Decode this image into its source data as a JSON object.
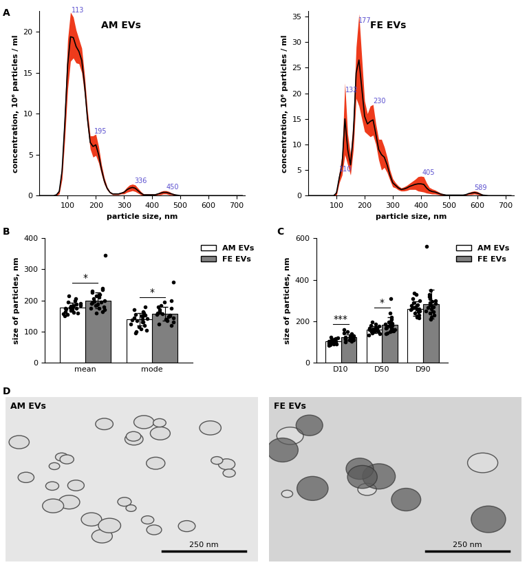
{
  "chart_data": [
    {
      "type": "line",
      "title": "AM EVs",
      "x_label": "particle size, nm",
      "y_label": "concentration, 10⁶ particles / ml",
      "x": [
        0,
        10,
        20,
        30,
        40,
        50,
        60,
        70,
        80,
        90,
        100,
        110,
        120,
        130,
        140,
        150,
        160,
        170,
        180,
        190,
        200,
        210,
        220,
        230,
        240,
        250,
        260,
        270,
        280,
        290,
        300,
        310,
        320,
        330,
        340,
        350,
        360,
        370,
        380,
        390,
        400,
        410,
        420,
        430,
        440,
        450,
        460,
        470,
        480,
        490,
        500,
        510,
        520,
        530,
        540,
        550,
        560,
        570,
        580,
        590,
        600,
        610,
        620,
        630,
        640,
        650,
        660,
        670,
        680,
        690,
        700,
        710,
        720
      ],
      "values": [
        0,
        0,
        0,
        0,
        0,
        0,
        0.1,
        0.5,
        3,
        9,
        16,
        19.4,
        19.3,
        18.2,
        17.6,
        16.5,
        13.5,
        9.5,
        6.5,
        6.0,
        6.2,
        5.0,
        3.2,
        1.8,
        0.9,
        0.4,
        0.2,
        0.2,
        0.2,
        0.3,
        0.4,
        0.7,
        0.9,
        1.0,
        0.9,
        0.6,
        0.3,
        0.1,
        0.1,
        0.1,
        0.1,
        0.1,
        0.2,
        0.3,
        0.4,
        0.4,
        0.3,
        0.2,
        0.1,
        0.05,
        0,
        0,
        0,
        0,
        0,
        0,
        0,
        0,
        0,
        0,
        0,
        0,
        0,
        0,
        0,
        0,
        0,
        0,
        0,
        0,
        0,
        0,
        0
      ],
      "error": [
        0,
        0,
        0,
        0,
        0,
        0,
        0.1,
        0.3,
        1,
        2,
        3,
        3,
        2.5,
        2,
        1.5,
        1.5,
        1.2,
        1,
        0.8,
        1.3,
        1.3,
        1,
        0.6,
        0.4,
        0.2,
        0.1,
        0.1,
        0.1,
        0.1,
        0.1,
        0.2,
        0.3,
        0.4,
        0.4,
        0.4,
        0.3,
        0.2,
        0.1,
        0.1,
        0.1,
        0.1,
        0.1,
        0.1,
        0.2,
        0.2,
        0.2,
        0.2,
        0.1,
        0.1,
        0,
        0,
        0,
        0,
        0,
        0,
        0,
        0,
        0,
        0,
        0,
        0,
        0,
        0,
        0,
        0,
        0,
        0,
        0,
        0,
        0,
        0,
        0,
        0
      ],
      "color": "#000000",
      "error_color": "#ee3b1c",
      "peaks": [
        113,
        195,
        336,
        450
      ],
      "peak_color": "#5a4fcf",
      "xlim": [
        0,
        730
      ],
      "xticks": [
        100,
        200,
        300,
        400,
        500,
        600,
        700
      ],
      "ylim": [
        0,
        22.5
      ],
      "yticks": [
        0,
        5,
        10,
        15,
        20
      ]
    },
    {
      "type": "line",
      "title": "FE EVs",
      "x_label": "particle size, nm",
      "y_label": "concentration, 10⁶ particles / ml",
      "x": [
        0,
        10,
        20,
        30,
        40,
        50,
        60,
        70,
        80,
        90,
        100,
        110,
        120,
        130,
        140,
        150,
        160,
        170,
        180,
        190,
        200,
        210,
        220,
        230,
        240,
        250,
        260,
        270,
        280,
        290,
        300,
        310,
        320,
        330,
        340,
        350,
        360,
        370,
        380,
        390,
        400,
        410,
        420,
        430,
        440,
        450,
        460,
        470,
        480,
        490,
        500,
        510,
        520,
        530,
        540,
        550,
        560,
        570,
        580,
        590,
        600,
        610,
        620,
        630,
        640,
        650,
        660,
        670,
        680,
        690,
        700,
        710,
        720
      ],
      "values": [
        0,
        0,
        0,
        0,
        0,
        0,
        0,
        0,
        0,
        0,
        0.5,
        3.5,
        6,
        15,
        9,
        6,
        12,
        24,
        26.5,
        21,
        15.5,
        14,
        14.5,
        14.8,
        12,
        9,
        8,
        7.5,
        6,
        4,
        2.5,
        2,
        1.5,
        1.2,
        1.3,
        1.5,
        1.8,
        2,
        2.2,
        2.3,
        2.3,
        2.2,
        1.5,
        1,
        0.8,
        0.7,
        0.5,
        0.3,
        0.2,
        0.1,
        0.1,
        0.1,
        0.1,
        0.1,
        0.1,
        0.1,
        0.2,
        0.4,
        0.5,
        0.6,
        0.5,
        0.3,
        0.1,
        0.05,
        0,
        0,
        0,
        0,
        0,
        0,
        0,
        0,
        0
      ],
      "error": [
        0,
        0,
        0,
        0,
        0,
        0,
        0,
        0,
        0,
        0,
        0.5,
        1,
        2,
        7,
        3,
        2,
        3,
        5,
        9,
        6,
        3,
        2,
        3,
        3,
        2,
        2,
        3,
        2,
        1.5,
        1,
        0.8,
        0.5,
        0.4,
        0.3,
        0.4,
        0.5,
        0.6,
        0.8,
        1,
        1.4,
        1.5,
        1.5,
        1,
        0.6,
        0.5,
        0.4,
        0.3,
        0.2,
        0.1,
        0.1,
        0.1,
        0.1,
        0.1,
        0.1,
        0.1,
        0.1,
        0.1,
        0.2,
        0.3,
        0.3,
        0.3,
        0.2,
        0.1,
        0,
        0,
        0,
        0,
        0,
        0,
        0,
        0,
        0,
        0
      ],
      "color": "#000000",
      "error_color": "#ee3b1c",
      "peaks": [
        110,
        132,
        177,
        230,
        405,
        589
      ],
      "peak_color": "#5a4fcf",
      "xlim": [
        0,
        730
      ],
      "xticks": [
        100,
        200,
        300,
        400,
        500,
        600,
        700
      ],
      "ylim": [
        0,
        36
      ],
      "yticks": [
        0,
        5,
        10,
        15,
        20,
        25,
        30,
        35
      ]
    },
    {
      "type": "bar",
      "y_label": "size of particles, nm",
      "categories": [
        "mean",
        "mode"
      ],
      "legend": "upper right",
      "series": [
        {
          "name": "AM EVs",
          "color": "#ffffff",
          "values": [
            178,
            140
          ],
          "errors": [
            15,
            20
          ],
          "points": [
            [
              150,
              155,
              160,
              162,
              165,
              168,
              170,
              172,
              175,
              176,
              178,
              180,
              182,
              185,
              188,
              190,
              195,
              200,
              205,
              215,
              158,
              183
            ],
            [
              95,
              100,
              105,
              110,
              115,
              120,
              125,
              130,
              135,
              138,
              140,
              142,
              145,
              150,
              155,
              160,
              165,
              170,
              180,
              130,
              148,
              152
            ]
          ]
        },
        {
          "name": "FE EVs",
          "color": "#808080",
          "values": [
            200,
            157
          ],
          "errors": [
            25,
            22
          ],
          "points": [
            [
              160,
              165,
              170,
              175,
              180,
              185,
              188,
              190,
              195,
              198,
              200,
              205,
              210,
              215,
              220,
              225,
              230,
              235,
              240,
              175,
              345,
              192
            ],
            [
              120,
              125,
              130,
              135,
              140,
              145,
              150,
              152,
              155,
              158,
              160,
              165,
              170,
              175,
              180,
              185,
              195,
              200,
              260,
              148,
              162,
              140
            ]
          ]
        }
      ],
      "significance": [
        {
          "category": "mean",
          "label": "*"
        },
        {
          "category": "mode",
          "label": "*"
        }
      ],
      "ylim": [
        0,
        400
      ],
      "yticks": [
        0,
        100,
        200,
        300,
        400
      ]
    },
    {
      "type": "bar",
      "y_label": "size of particles, nm",
      "categories": [
        "D10",
        "D50",
        "D90"
      ],
      "legend": "upper right",
      "series": [
        {
          "name": "AM EVs",
          "color": "#ffffff",
          "values": [
            103,
            160,
            260
          ],
          "errors": [
            12,
            15,
            35
          ],
          "points": [
            [
              85,
              88,
              90,
              92,
              95,
              98,
              100,
              102,
              103,
              105,
              107,
              110,
              112,
              115,
              118,
              120,
              125,
              100,
              97,
              108
            ],
            [
              135,
              140,
              145,
              148,
              150,
              152,
              155,
              158,
              160,
              162,
              165,
              168,
              170,
              175,
              180,
              185,
              195,
              157,
              163,
              150
            ],
            [
              215,
              220,
              225,
              230,
              240,
              245,
              250,
              255,
              260,
              265,
              270,
              275,
              280,
              290,
              300,
              310,
              330,
              335,
              258,
              262
            ]
          ]
        },
        {
          "name": "FE EVs",
          "color": "#808080",
          "values": [
            122,
            183,
            283
          ],
          "errors": [
            15,
            35,
            70
          ],
          "points": [
            [
              100,
              105,
              108,
              110,
              112,
              115,
              118,
              120,
              122,
              125,
              128,
              130,
              135,
              140,
              145,
              150,
              160,
              118,
              124,
              113
            ],
            [
              140,
              145,
              150,
              155,
              160,
              165,
              170,
              175,
              180,
              185,
              190,
              195,
              200,
              210,
              220,
              240,
              310,
              175,
              182,
              168
            ],
            [
              210,
              220,
              230,
              240,
              250,
              260,
              265,
              270,
              280,
              290,
              300,
              310,
              320,
              330,
              350,
              560,
              275,
              285,
              295,
              245
            ]
          ]
        }
      ],
      "significance": [
        {
          "category": "D10",
          "label": "***"
        },
        {
          "category": "D50",
          "label": "*"
        }
      ],
      "ylim": [
        0,
        600
      ],
      "yticks": [
        0,
        200,
        400,
        600
      ]
    }
  ],
  "panel_labels": [
    "A",
    "B",
    "C",
    "D"
  ],
  "images": [
    {
      "title": "AM EVs",
      "scale_bar": "250 nm"
    },
    {
      "title": "FE EVs",
      "scale_bar": "250 nm"
    }
  ]
}
